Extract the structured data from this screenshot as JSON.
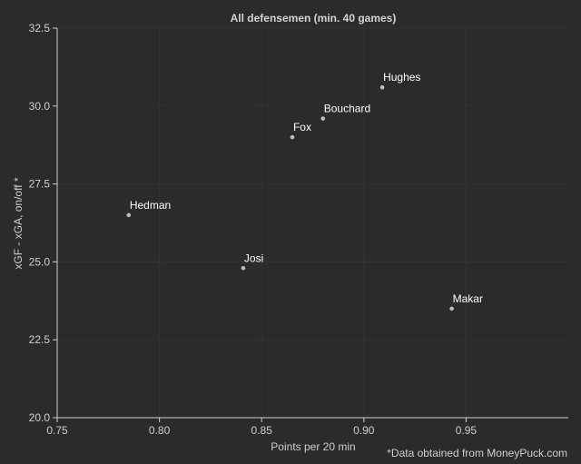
{
  "chart_data": {
    "type": "scatter",
    "title": "All defensemen (min. 40 games)",
    "xlabel": "Points per 20 min",
    "ylabel": "xGF - xGA, on/off *",
    "xlim": [
      0.75,
      1.0
    ],
    "ylim": [
      20.0,
      32.5
    ],
    "xticks": [
      "0.75",
      "0.80",
      "0.85",
      "0.90",
      "0.95"
    ],
    "yticks": [
      "20.0",
      "22.5",
      "25.0",
      "27.5",
      "30.0",
      "32.5"
    ],
    "grid": true,
    "points": [
      {
        "label": "Hughes",
        "x": 0.909,
        "y": 30.6
      },
      {
        "label": "Bouchard",
        "x": 0.88,
        "y": 29.6
      },
      {
        "label": "Fox",
        "x": 0.865,
        "y": 29.0
      },
      {
        "label": "Hedman",
        "x": 0.785,
        "y": 26.5
      },
      {
        "label": "Josi",
        "x": 0.841,
        "y": 24.8
      },
      {
        "label": "Makar",
        "x": 0.943,
        "y": 23.5
      }
    ],
    "footnote": "*Data obtained from MoneyPuck.com"
  },
  "colors": {
    "background": "#2b2b2b",
    "grid": "#333333",
    "axis": "#cfcfcf",
    "point": "#bdbdbd",
    "text": "#ffffff"
  }
}
